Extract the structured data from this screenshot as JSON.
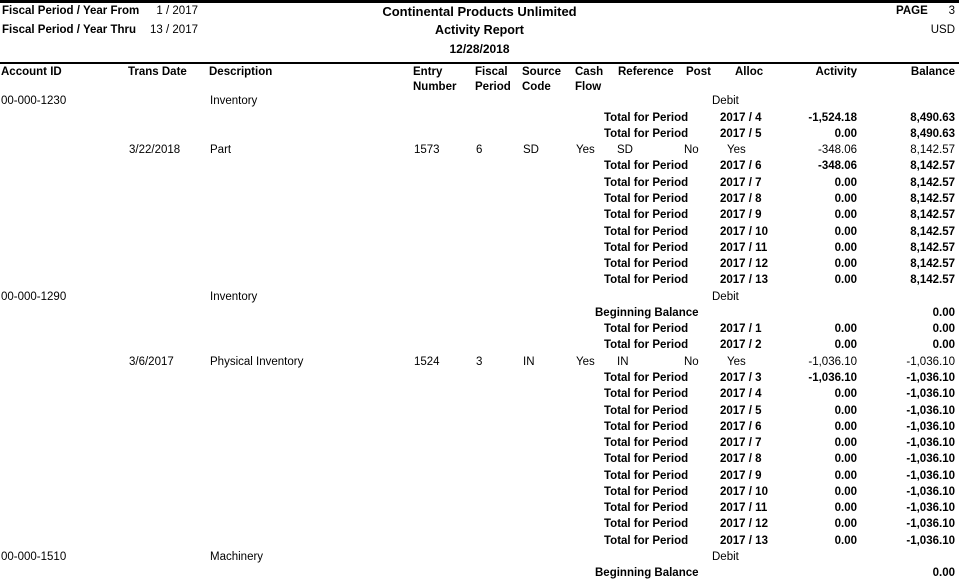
{
  "header": {
    "fiscal_from_label": "Fiscal Period / Year From",
    "fiscal_from_value": "1 / 2017",
    "fiscal_thru_label": "Fiscal Period / Year Thru",
    "fiscal_thru_value": "13 / 2017",
    "company_name": "Continental Products Unlimited",
    "report_title": "Activity Report",
    "report_date": "12/28/2018",
    "page_label": "PAGE",
    "page_number": "3",
    "currency": "USD"
  },
  "columns": [
    {
      "id": "acct",
      "line1": "Account ID",
      "line2": ""
    },
    {
      "id": "date",
      "line1": "Trans Date",
      "line2": ""
    },
    {
      "id": "desc",
      "line1": "Description",
      "line2": ""
    },
    {
      "id": "entry",
      "line1": "Entry",
      "line2": "Number"
    },
    {
      "id": "fisc",
      "line1": "Fiscal",
      "line2": "Period"
    },
    {
      "id": "src",
      "line1": "Source",
      "line2": "Code"
    },
    {
      "id": "cash",
      "line1": "Cash",
      "line2": "Flow"
    },
    {
      "id": "ref",
      "line1": "Reference",
      "line2": ""
    },
    {
      "id": "post",
      "line1": "Post",
      "line2": ""
    },
    {
      "id": "alloc",
      "line1": "Alloc",
      "line2": ""
    },
    {
      "id": "act",
      "line1": "Activity",
      "line2": ""
    },
    {
      "id": "bal",
      "line1": "Balance",
      "line2": ""
    }
  ],
  "labels": {
    "total": "Total for Period",
    "beginning": "Beginning Balance"
  },
  "rows": [
    {
      "type": "account",
      "account_id": "00-000-1230",
      "description": "Inventory",
      "drcr": "Debit"
    },
    {
      "type": "total",
      "period": "2017 / 4",
      "activity": "-1,524.18",
      "balance": "8,490.63"
    },
    {
      "type": "total",
      "period": "2017 / 5",
      "activity": "0.00",
      "balance": "8,490.63"
    },
    {
      "type": "detail",
      "trans_date": "3/22/2018",
      "description": "Part",
      "entry_number": "1573",
      "fiscal_period": "6",
      "source_code": "SD",
      "cash_flow": "Yes",
      "reference": "SD",
      "post": "No",
      "alloc": "Yes",
      "activity": "-348.06",
      "balance": "8,142.57"
    },
    {
      "type": "total",
      "period": "2017 / 6",
      "activity": "-348.06",
      "balance": "8,142.57"
    },
    {
      "type": "total",
      "period": "2017 / 7",
      "activity": "0.00",
      "balance": "8,142.57"
    },
    {
      "type": "total",
      "period": "2017 / 8",
      "activity": "0.00",
      "balance": "8,142.57"
    },
    {
      "type": "total",
      "period": "2017 / 9",
      "activity": "0.00",
      "balance": "8,142.57"
    },
    {
      "type": "total",
      "period": "2017 / 10",
      "activity": "0.00",
      "balance": "8,142.57"
    },
    {
      "type": "total",
      "period": "2017 / 11",
      "activity": "0.00",
      "balance": "8,142.57"
    },
    {
      "type": "total",
      "period": "2017 / 12",
      "activity": "0.00",
      "balance": "8,142.57"
    },
    {
      "type": "total",
      "period": "2017 / 13",
      "activity": "0.00",
      "balance": "8,142.57"
    },
    {
      "type": "account",
      "account_id": "00-000-1290",
      "description": "Inventory",
      "drcr": "Debit"
    },
    {
      "type": "beginning",
      "balance": "0.00"
    },
    {
      "type": "total",
      "period": "2017 / 1",
      "activity": "0.00",
      "balance": "0.00"
    },
    {
      "type": "total",
      "period": "2017 / 2",
      "activity": "0.00",
      "balance": "0.00"
    },
    {
      "type": "detail",
      "trans_date": "3/6/2017",
      "description": "Physical Inventory",
      "entry_number": "1524",
      "fiscal_period": "3",
      "source_code": "IN",
      "cash_flow": "Yes",
      "reference": "IN",
      "post": "No",
      "alloc": "Yes",
      "activity": "-1,036.10",
      "balance": "-1,036.10"
    },
    {
      "type": "total",
      "period": "2017 / 3",
      "activity": "-1,036.10",
      "balance": "-1,036.10"
    },
    {
      "type": "total",
      "period": "2017 / 4",
      "activity": "0.00",
      "balance": "-1,036.10"
    },
    {
      "type": "total",
      "period": "2017 / 5",
      "activity": "0.00",
      "balance": "-1,036.10"
    },
    {
      "type": "total",
      "period": "2017 / 6",
      "activity": "0.00",
      "balance": "-1,036.10"
    },
    {
      "type": "total",
      "period": "2017 / 7",
      "activity": "0.00",
      "balance": "-1,036.10"
    },
    {
      "type": "total",
      "period": "2017 / 8",
      "activity": "0.00",
      "balance": "-1,036.10"
    },
    {
      "type": "total",
      "period": "2017 / 9",
      "activity": "0.00",
      "balance": "-1,036.10"
    },
    {
      "type": "total",
      "period": "2017 / 10",
      "activity": "0.00",
      "balance": "-1,036.10"
    },
    {
      "type": "total",
      "period": "2017 / 11",
      "activity": "0.00",
      "balance": "-1,036.10"
    },
    {
      "type": "total",
      "period": "2017 / 12",
      "activity": "0.00",
      "balance": "-1,036.10"
    },
    {
      "type": "total",
      "period": "2017 / 13",
      "activity": "0.00",
      "balance": "-1,036.10"
    },
    {
      "type": "account",
      "account_id": "00-000-1510",
      "description": "Machinery",
      "drcr": "Debit"
    },
    {
      "type": "beginning",
      "balance": "0.00"
    }
  ]
}
